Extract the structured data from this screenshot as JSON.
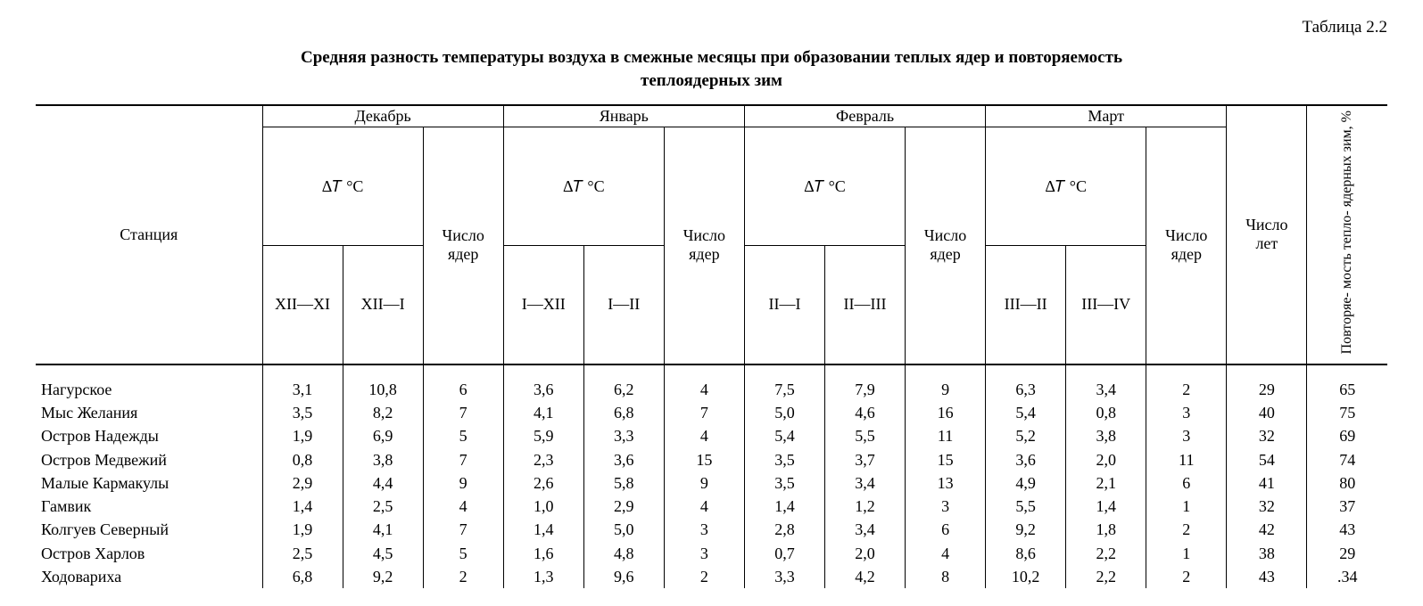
{
  "table_label": "Таблица 2.2",
  "caption_line1": "Средняя разность температуры воздуха в смежные месяцы при образовании теплых ядер и повторяемость",
  "caption_line2": "теплоядерных зим",
  "header": {
    "station": "Станция",
    "months": {
      "dec": "Декабрь",
      "jan": "Январь",
      "feb": "Февраль",
      "mar": "Март"
    },
    "dt_label": "Δ𝑇 °C",
    "cores_label_l1": "Число",
    "cores_label_l2": "ядер",
    "years_l1": "Число",
    "years_l2": "лет",
    "freq_rot": "Повторяе-\nмость тепло-\nядерных зим,\n%",
    "subcols": {
      "dec1": "XII—XI",
      "dec2": "XII—I",
      "jan1": "I—XII",
      "jan2": "I—II",
      "feb1": "II—I",
      "feb2": "II—III",
      "mar1": "III—II",
      "mar2": "III—IV"
    }
  },
  "rows": [
    {
      "station": "Нагурское",
      "dec1": "3,1",
      "dec2": "10,8",
      "decN": "6",
      "jan1": "3,6",
      "jan2": "6,2",
      "janN": "4",
      "feb1": "7,5",
      "feb2": "7,9",
      "febN": "9",
      "mar1": "6,3",
      "mar2": "3,4",
      "marN": "2",
      "years": "29",
      "freq": "65"
    },
    {
      "station": "Мыс Желания",
      "dec1": "3,5",
      "dec2": "8,2",
      "decN": "7",
      "jan1": "4,1",
      "jan2": "6,8",
      "janN": "7",
      "feb1": "5,0",
      "feb2": "4,6",
      "febN": "16",
      "mar1": "5,4",
      "mar2": "0,8",
      "marN": "3",
      "years": "40",
      "freq": "75"
    },
    {
      "station": "Остров Надежды",
      "dec1": "1,9",
      "dec2": "6,9",
      "decN": "5",
      "jan1": "5,9",
      "jan2": "3,3",
      "janN": "4",
      "feb1": "5,4",
      "feb2": "5,5",
      "febN": "11",
      "mar1": "5,2",
      "mar2": "3,8",
      "marN": "3",
      "years": "32",
      "freq": "69"
    },
    {
      "station": "Остров Медвежий",
      "dec1": "0,8",
      "dec2": "3,8",
      "decN": "7",
      "jan1": "2,3",
      "jan2": "3,6",
      "janN": "15",
      "feb1": "3,5",
      "feb2": "3,7",
      "febN": "15",
      "mar1": "3,6",
      "mar2": "2,0",
      "marN": "11",
      "years": "54",
      "freq": "74"
    },
    {
      "station": "Малые Кармакулы",
      "dec1": "2,9",
      "dec2": "4,4",
      "decN": "9",
      "jan1": "2,6",
      "jan2": "5,8",
      "janN": "9",
      "feb1": "3,5",
      "feb2": "3,4",
      "febN": "13",
      "mar1": "4,9",
      "mar2": "2,1",
      "marN": "6",
      "years": "41",
      "freq": "80"
    },
    {
      "station": "Гамвик",
      "dec1": "1,4",
      "dec2": "2,5",
      "decN": "4",
      "jan1": "1,0",
      "jan2": "2,9",
      "janN": "4",
      "feb1": "1,4",
      "feb2": "1,2",
      "febN": "3",
      "mar1": "5,5",
      "mar2": "1,4",
      "marN": "1",
      "years": "32",
      "freq": "37"
    },
    {
      "station": "Колгуев Северный",
      "dec1": "1,9",
      "dec2": "4,1",
      "decN": "7",
      "jan1": "1,4",
      "jan2": "5,0",
      "janN": "3",
      "feb1": "2,8",
      "feb2": "3,4",
      "febN": "6",
      "mar1": "9,2",
      "mar2": "1,8",
      "marN": "2",
      "years": "42",
      "freq": "43"
    },
    {
      "station": "Остров Харлов",
      "dec1": "2,5",
      "dec2": "4,5",
      "decN": "5",
      "jan1": "1,6",
      "jan2": "4,8",
      "janN": "3",
      "feb1": "0,7",
      "feb2": "2,0",
      "febN": "4",
      "mar1": "8,6",
      "mar2": "2,2",
      "marN": "1",
      "years": "38",
      "freq": "29"
    },
    {
      "station": "Ходовариха",
      "dec1": "6,8",
      "dec2": "9,2",
      "decN": "2",
      "jan1": "1,3",
      "jan2": "9,6",
      "janN": "2",
      "feb1": "3,3",
      "feb2": "4,2",
      "febN": "8",
      "mar1": "10,2",
      "mar2": "2,2",
      "marN": "2",
      "years": "43",
      "freq": ".34"
    }
  ]
}
